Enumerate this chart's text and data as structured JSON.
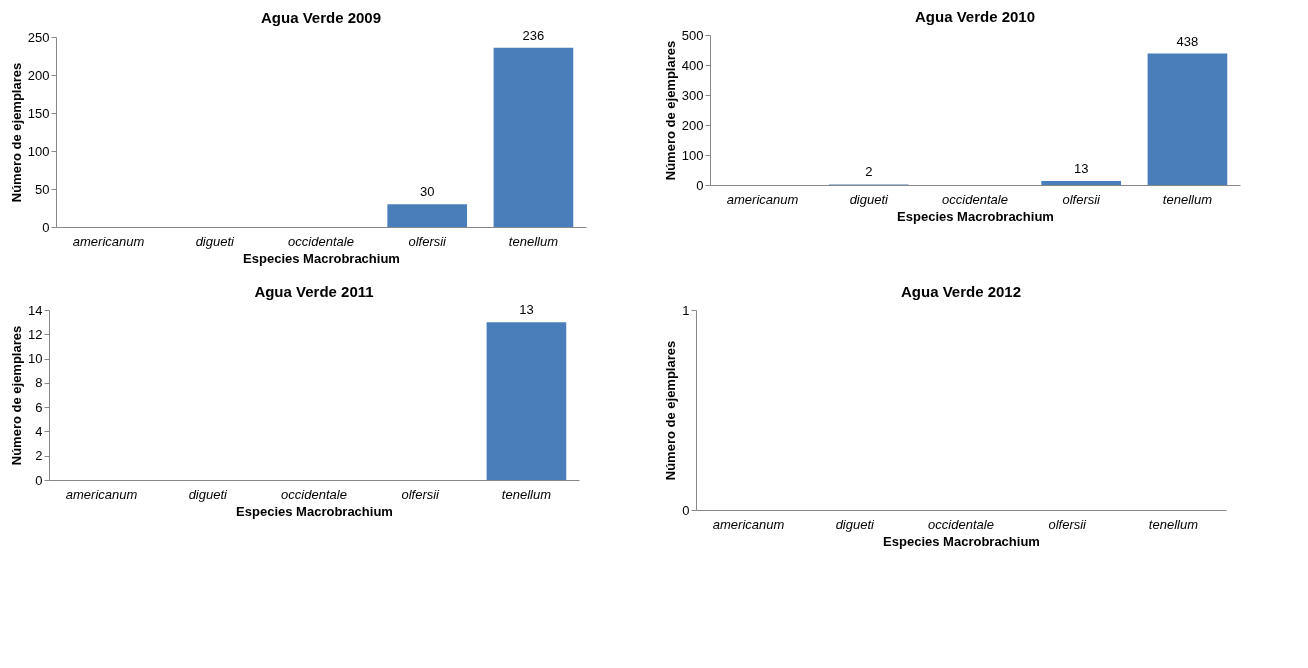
{
  "chart_data": [
    {
      "type": "bar",
      "title": "Agua Verde 2009",
      "xlabel": "Especies Macrobrachium",
      "ylabel": "Número de ejemplares",
      "categories": [
        "americanum",
        "digueti",
        "occidentale",
        "olfersii",
        "tenellum"
      ],
      "values": [
        0,
        0,
        0,
        30,
        236
      ],
      "value_labels": [
        null,
        null,
        null,
        "30",
        "236"
      ],
      "color": "#4a7ebb",
      "ylim": [
        0,
        250
      ],
      "yticks": [
        0,
        50,
        100,
        150,
        200,
        250
      ],
      "grid": false
    },
    {
      "type": "bar",
      "title": "Agua Verde 2010",
      "xlabel": "Especies Macrobrachium",
      "ylabel": "Número de ejemplares",
      "categories": [
        "americanum",
        "digueti",
        "occidentale",
        "olfersii",
        "tenellum"
      ],
      "values": [
        0,
        2,
        0,
        13,
        438
      ],
      "value_labels": [
        null,
        "2",
        null,
        "13",
        "438"
      ],
      "color": "#4a7ebb",
      "ylim": [
        0,
        500
      ],
      "yticks": [
        0,
        100,
        200,
        300,
        400,
        500
      ],
      "grid": false
    },
    {
      "type": "bar",
      "title": "Agua Verde 2011",
      "xlabel": "Especies Macrobrachium",
      "ylabel": "Número de ejemplares",
      "categories": [
        "americanum",
        "digueti",
        "occidentale",
        "olfersii",
        "tenellum"
      ],
      "values": [
        0,
        0,
        0,
        0,
        13
      ],
      "value_labels": [
        null,
        null,
        null,
        null,
        "13"
      ],
      "color": "#4a7ebb",
      "ylim": [
        0,
        14
      ],
      "yticks": [
        0,
        2,
        4,
        6,
        8,
        10,
        12,
        14
      ],
      "grid": false
    },
    {
      "type": "bar",
      "title": "Agua Verde 2012",
      "xlabel": "Especies Macrobrachium",
      "ylabel": "Número de ejemplares",
      "categories": [
        "americanum",
        "digueti",
        "occidentale",
        "olfersii",
        "tenellum"
      ],
      "values": [
        0,
        0,
        0,
        0,
        0
      ],
      "color": "#4a7ebb",
      "ylim": [
        0,
        1
      ],
      "yticks": [
        0,
        1
      ],
      "grid": false
    }
  ]
}
